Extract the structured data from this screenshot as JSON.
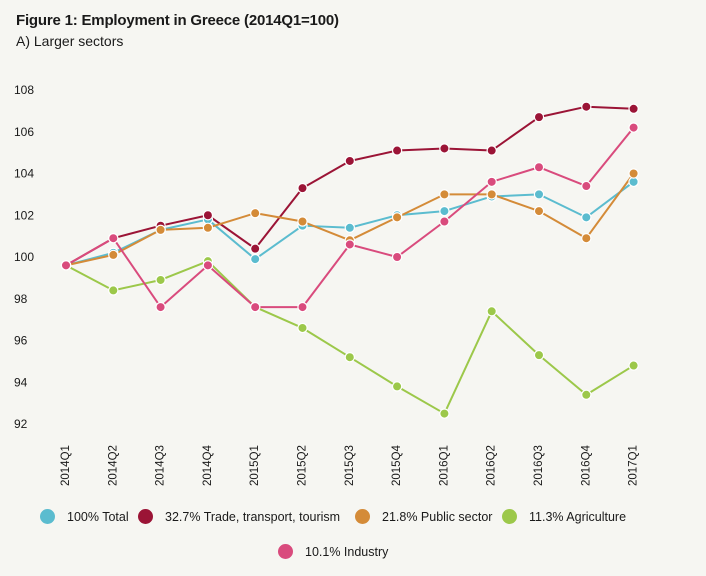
{
  "title": "Figure 1: Employment in Greece (2014Q1=100)",
  "subtitle": "A) Larger sectors",
  "chart_data": {
    "type": "line",
    "title": "Figure 1: Employment in Greece (2014Q1=100)",
    "subtitle": "A) Larger sectors",
    "xlabel": "",
    "ylabel": "",
    "ylim": [
      92,
      108
    ],
    "yticks": [
      92,
      94,
      96,
      98,
      100,
      102,
      104,
      106,
      108
    ],
    "grid": false,
    "legend_position": "bottom",
    "categories": [
      "2014Q1",
      "2014Q2",
      "2014Q3",
      "2014Q4",
      "2015Q1",
      "2015Q2",
      "2015Q3",
      "2015Q4",
      "2016Q1",
      "2016Q2",
      "2016Q3",
      "2016Q4",
      "2017Q1"
    ],
    "series": [
      {
        "name": "100% Total",
        "color": "#5bbccf",
        "values": [
          99.6,
          100.2,
          101.3,
          101.8,
          99.9,
          101.5,
          101.4,
          102.0,
          102.2,
          102.9,
          103.0,
          101.9,
          103.6
        ]
      },
      {
        "name": "32.7% Trade, transport, tourism",
        "color": "#9b1436",
        "values": [
          99.6,
          100.9,
          101.5,
          102.0,
          100.4,
          103.3,
          104.6,
          105.1,
          105.2,
          105.1,
          106.7,
          107.2,
          107.1
        ]
      },
      {
        "name": "21.8% Public sector",
        "color": "#d48b38",
        "values": [
          99.6,
          100.1,
          101.3,
          101.4,
          102.1,
          101.7,
          100.8,
          101.9,
          103.0,
          103.0,
          102.2,
          100.9,
          104.0
        ]
      },
      {
        "name": "11.3% Agriculture",
        "color": "#9cc84a",
        "values": [
          99.6,
          98.4,
          98.9,
          99.8,
          97.6,
          96.6,
          95.2,
          93.8,
          92.5,
          97.4,
          95.3,
          93.4,
          94.8
        ]
      },
      {
        "name": "10.1% Industry",
        "color": "#d94b7d",
        "values": [
          99.6,
          100.9,
          97.6,
          99.6,
          97.6,
          97.6,
          100.6,
          100.0,
          101.7,
          103.6,
          104.3,
          103.4,
          106.2
        ]
      }
    ]
  }
}
